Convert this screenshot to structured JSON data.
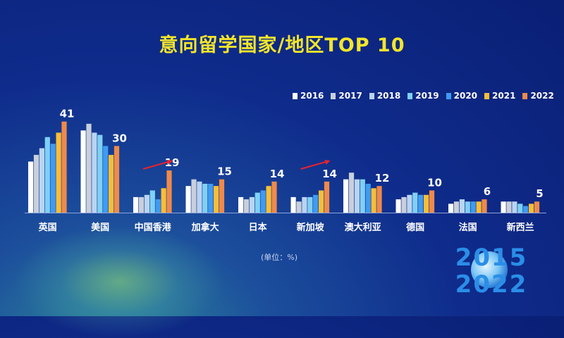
{
  "title": "意向留学国家/地区TOP 10",
  "unit_note": "(单位：%)",
  "logo": {
    "line1": "2015",
    "line2": "2022"
  },
  "colors": {
    "2016": "#ffffff",
    "2017": "#c9cfdb",
    "2018": "#b9d4f2",
    "2019": "#7fd0f5",
    "2020": "#3f9bf2",
    "2021": "#f7be3a",
    "2022": "#ef8a49"
  },
  "chart_data": {
    "type": "bar",
    "title": "意向留学国家/地区TOP 10",
    "categories": [
      "英国",
      "美国",
      "中国香港",
      "加拿大",
      "日本",
      "新加坡",
      "澳大利亚",
      "德国",
      "法国",
      "新西兰"
    ],
    "series": [
      {
        "name": "2016",
        "values": [
          23,
          37,
          7,
          12,
          7,
          7,
          15,
          6,
          4,
          5
        ]
      },
      {
        "name": "2017",
        "values": [
          26,
          40,
          7,
          15,
          6,
          5,
          18,
          7,
          5,
          5
        ]
      },
      {
        "name": "2018",
        "values": [
          29,
          36,
          8,
          14,
          7,
          7,
          15,
          8,
          6,
          5
        ]
      },
      {
        "name": "2019",
        "values": [
          34,
          35,
          10,
          13,
          9,
          7,
          15,
          9,
          5,
          4
        ]
      },
      {
        "name": "2020",
        "values": [
          31,
          30,
          6,
          13,
          10,
          8,
          13,
          8,
          5,
          3
        ]
      },
      {
        "name": "2021",
        "values": [
          36,
          26,
          11,
          12,
          12,
          10,
          11,
          8,
          5,
          4
        ]
      },
      {
        "name": "2022",
        "values": [
          41,
          30,
          19,
          15,
          14,
          14,
          12,
          10,
          6,
          5
        ]
      }
    ],
    "data_labels": [
      "41",
      "30",
      "19",
      "15",
      "14",
      "14",
      "12",
      "10",
      "6",
      "5"
    ],
    "trend_arrows": [
      "中国香港",
      "新加坡"
    ],
    "ylim": [
      0,
      45
    ],
    "grid": false,
    "legend": "top-right"
  }
}
